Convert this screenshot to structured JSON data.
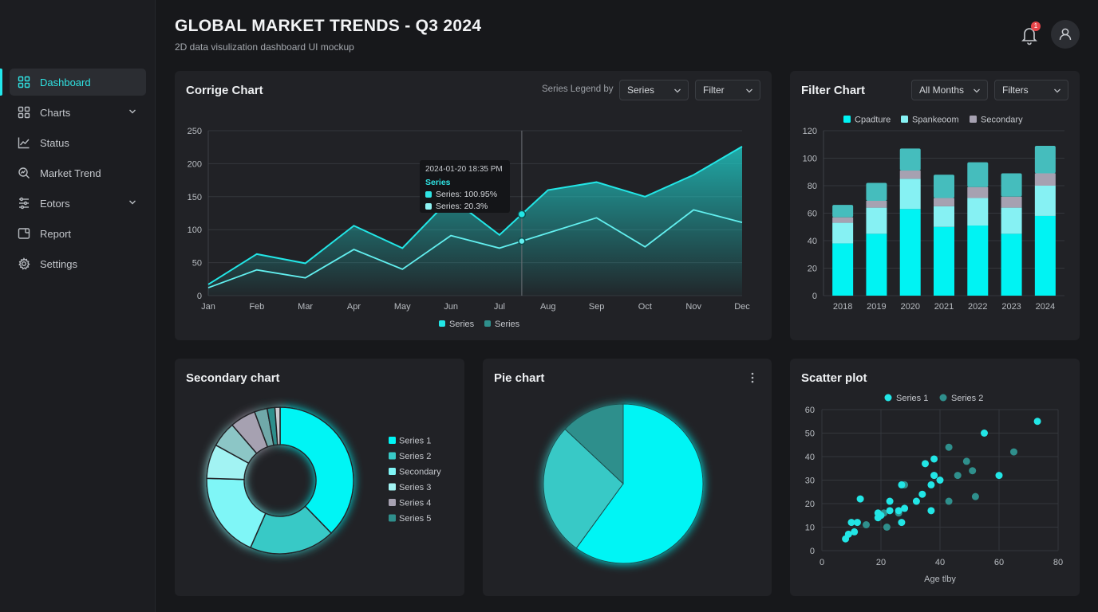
{
  "header": {
    "title": "GLOBAL MARKET TRENDS - Q3 2024",
    "subtitle": "2D data visulization dashboard UI mockup",
    "notification_count": "1"
  },
  "sidebar": {
    "items": [
      {
        "label": "Dashboard",
        "icon": "grid-icon",
        "active": true
      },
      {
        "label": "Charts",
        "icon": "grid-icon",
        "expandable": true
      },
      {
        "label": "Status",
        "icon": "line-chart-icon"
      },
      {
        "label": "Market Trend",
        "icon": "search-chart-icon"
      },
      {
        "label": "Eotors",
        "icon": "sliders-icon",
        "expandable": true
      },
      {
        "label": "Report",
        "icon": "report-icon"
      },
      {
        "label": "Settings",
        "icon": "gear-icon"
      }
    ]
  },
  "colors": {
    "accent": "#00f5f5",
    "accent2": "#3ec4c4",
    "muted": "#2f8f8c",
    "secondary": "#a8a3b2",
    "card": "#212226",
    "bg": "#17181b"
  },
  "combo_chart": {
    "title": "Corrige Chart",
    "legend_by_label": "Series Legend by",
    "select_series": "Series",
    "select_filter": "Filter",
    "tooltip": {
      "date": "2024-01-20 18:35 PM",
      "heading": "Series",
      "row1": "Series: 100.95%",
      "row2": "Series: 20.3%"
    }
  },
  "filter_chart": {
    "title": "Filter Chart",
    "select_months": "All Months",
    "select_filters": "Filters"
  },
  "secondary_chart": {
    "title": "Secondary chart"
  },
  "pie_chart": {
    "title": "Pie chart"
  },
  "scatter_chart": {
    "title": "Scatter plot"
  },
  "chart_data": [
    {
      "type": "area",
      "title": "Corrige Chart",
      "categories": [
        "Jan",
        "Feb",
        "Mar",
        "Apr",
        "May",
        "Jun",
        "Jul",
        "Aug",
        "Sep",
        "Oct",
        "Nov",
        "Dec"
      ],
      "ylim": [
        0,
        250
      ],
      "yticks": [
        0,
        50,
        100,
        150,
        200,
        250
      ],
      "grid": true,
      "legend": "bottom",
      "series": [
        {
          "name": "Series",
          "values": [
            17,
            63,
            49,
            106,
            72,
            148,
            92,
            160,
            172,
            150,
            183,
            226
          ]
        },
        {
          "name": "Series",
          "values": [
            12,
            39,
            27,
            70,
            40,
            91,
            72,
            95,
            118,
            74,
            130,
            111
          ]
        }
      ]
    },
    {
      "type": "bar",
      "stacked": true,
      "title": "Filter Chart",
      "categories": [
        "2018",
        "2019",
        "2020",
        "2021",
        "2022",
        "2023",
        "2024"
      ],
      "ylim": [
        0,
        120
      ],
      "yticks": [
        0,
        20,
        40,
        60,
        80,
        100,
        120
      ],
      "grid": true,
      "legend": "top",
      "series": [
        {
          "name": "Cpadture",
          "values": [
            38,
            45,
            63,
            50,
            51,
            45,
            58
          ]
        },
        {
          "name": "Spankeoom",
          "values": [
            15,
            19,
            22,
            15,
            20,
            19,
            22
          ]
        },
        {
          "name": "Secondary",
          "values": [
            4,
            5,
            6,
            6,
            8,
            8,
            9
          ]
        },
        {
          "name": "",
          "values": [
            9,
            13,
            16,
            17,
            18,
            17,
            20
          ]
        }
      ]
    },
    {
      "type": "pie",
      "donut": true,
      "title": "Secondary chart",
      "legend": "right",
      "labels": [
        "Series 1",
        "Series 2",
        "Secondary",
        "Series 3",
        "Series 4",
        "Series 5"
      ],
      "values": [
        40,
        20,
        20,
        8,
        6,
        6
      ],
      "extra_slices": [
        3,
        1.8,
        1.2
      ]
    },
    {
      "type": "pie",
      "title": "Pie chart",
      "values": [
        60,
        27,
        13
      ]
    },
    {
      "type": "scatter",
      "title": "Scatter plot",
      "xlabel": "Age  tlby",
      "xlim": [
        0,
        80
      ],
      "ylim": [
        0,
        60
      ],
      "xticks": [
        0,
        20,
        40,
        60,
        80
      ],
      "yticks": [
        0,
        10,
        20,
        30,
        40,
        50,
        60
      ],
      "grid": true,
      "legend": "top",
      "series": [
        {
          "name": "Series 1",
          "points": [
            [
              8,
              5
            ],
            [
              9,
              7
            ],
            [
              10,
              12
            ],
            [
              11,
              8
            ],
            [
              12,
              12
            ],
            [
              13,
              22
            ],
            [
              19,
              14
            ],
            [
              19,
              16
            ],
            [
              20,
              15
            ],
            [
              23,
              21
            ],
            [
              23,
              17
            ],
            [
              26,
              17
            ],
            [
              27,
              12
            ],
            [
              27,
              28
            ],
            [
              28,
              18
            ],
            [
              32,
              21
            ],
            [
              34,
              24
            ],
            [
              35,
              37
            ],
            [
              37,
              28
            ],
            [
              37,
              17
            ],
            [
              38,
              39
            ],
            [
              38,
              32
            ],
            [
              55,
              50
            ],
            [
              60,
              32
            ],
            [
              73,
              55
            ],
            [
              40,
              30
            ]
          ]
        },
        {
          "name": "Series 2",
          "points": [
            [
              15,
              11
            ],
            [
              21,
              16
            ],
            [
              22,
              10
            ],
            [
              26,
              16
            ],
            [
              38,
              32
            ],
            [
              43,
              44
            ],
            [
              43,
              21
            ],
            [
              46,
              32
            ],
            [
              49,
              38
            ],
            [
              51,
              34
            ],
            [
              52,
              23
            ],
            [
              65,
              42
            ],
            [
              28,
              28
            ]
          ]
        }
      ]
    }
  ]
}
